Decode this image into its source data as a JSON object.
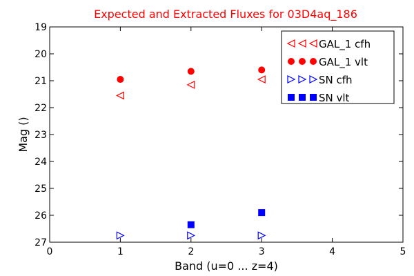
{
  "chart_data": {
    "type": "scatter",
    "title": "Expected and Extracted Fluxes for 03D4aq_186",
    "title_color": "#ff0000",
    "xlabel": "Band (u=0 ... z=4)",
    "ylabel": "Mag ()",
    "xlim": [
      0,
      5
    ],
    "ylim": [
      27,
      19
    ],
    "y_inverted": true,
    "x_ticks": [
      "0",
      "1",
      "2",
      "3",
      "4",
      "5"
    ],
    "y_ticks": [
      "19",
      "20",
      "21",
      "22",
      "23",
      "24",
      "25",
      "26",
      "27"
    ],
    "legend_position": "top-right",
    "grid": false,
    "series": [
      {
        "name": "GAL_1 cfh",
        "marker": "triangle-left-open",
        "color": "#ff0000",
        "points": [
          {
            "x": 1,
            "y": 21.55
          },
          {
            "x": 2,
            "y": 21.15
          },
          {
            "x": 3,
            "y": 20.95
          }
        ]
      },
      {
        "name": "GAL_1 vlt",
        "marker": "circle-filled",
        "color": "#ff0000",
        "points": [
          {
            "x": 1,
            "y": 20.95
          },
          {
            "x": 2,
            "y": 20.65
          },
          {
            "x": 3,
            "y": 20.6
          }
        ]
      },
      {
        "name": "SN cfh",
        "marker": "triangle-right-open",
        "color": "#0000ff",
        "points": [
          {
            "x": 1,
            "y": 26.75
          },
          {
            "x": 2,
            "y": 26.75
          },
          {
            "x": 3,
            "y": 26.75
          }
        ]
      },
      {
        "name": "SN vlt",
        "marker": "square-filled",
        "color": "#0000ff",
        "points": [
          {
            "x": 2,
            "y": 26.35
          },
          {
            "x": 3,
            "y": 25.9
          }
        ]
      }
    ]
  }
}
